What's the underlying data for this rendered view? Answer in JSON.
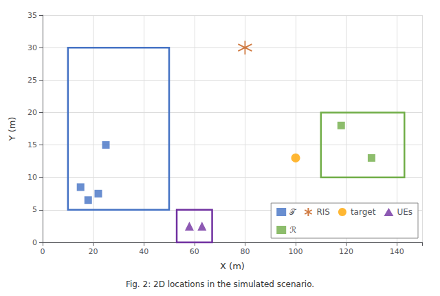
{
  "chart_data": {
    "type": "scatter",
    "title": "",
    "caption": "Fig. 2: 2D locations in the simulated scenario.",
    "xlabel": "X (m)",
    "ylabel": "Y (m)",
    "xlim": [
      0,
      150
    ],
    "ylim": [
      0,
      35
    ],
    "xticks": [
      0,
      20,
      40,
      60,
      80,
      100,
      120,
      140
    ],
    "yticks": [
      0,
      5,
      10,
      15,
      20,
      25,
      30,
      35
    ],
    "grid": true,
    "legend": "lower right",
    "series": [
      {
        "name": "𝒯",
        "color": "#4472C4",
        "marker": "square",
        "x": [
          15,
          18,
          22,
          25
        ],
        "values": [
          8.5,
          6.5,
          7.5,
          15
        ],
        "box": {
          "x": 10,
          "y": 5,
          "width": 40,
          "height": 25
        }
      },
      {
        "name": "RIS",
        "color": "#C45911",
        "marker": "asterisk",
        "x": [
          80
        ],
        "values": [
          30
        ]
      },
      {
        "name": "target",
        "color": "#FFA500",
        "marker": "circle",
        "x": [
          100
        ],
        "values": [
          13
        ]
      },
      {
        "name": "UEs",
        "color": "#7030A0",
        "marker": "triangle",
        "x": [
          58,
          63
        ],
        "values": [
          2.5,
          2.5
        ],
        "box": {
          "x": 53,
          "y": 0,
          "width": 14,
          "height": 5
        }
      },
      {
        "name": "ℛ",
        "color": "#70AD47",
        "marker": "square",
        "x": [
          118,
          130
        ],
        "values": [
          18,
          13
        ],
        "box": {
          "x": 110,
          "y": 10,
          "width": 33,
          "height": 10
        }
      }
    ]
  }
}
